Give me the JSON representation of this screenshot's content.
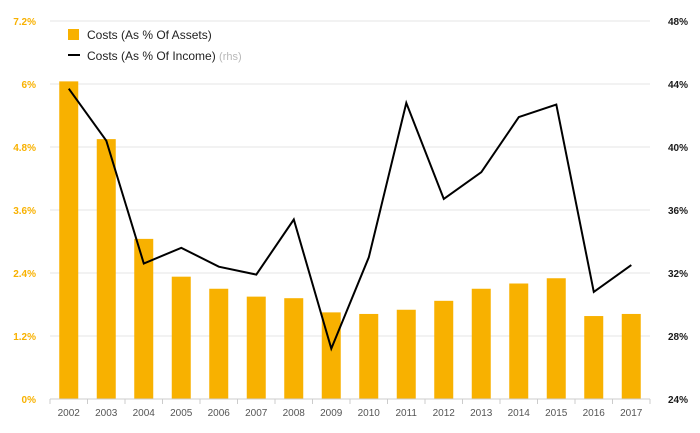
{
  "colors": {
    "bars": "#f8b100",
    "line": "#000000",
    "grid": "#e5e5e5",
    "left_axis_text": "#f8b100",
    "right_axis_text": "#1a1a1a"
  },
  "chart_data": {
    "type": "bar",
    "categories": [
      "2002",
      "2003",
      "2004",
      "2005",
      "2006",
      "2007",
      "2008",
      "2009",
      "2010",
      "2011",
      "2012",
      "2013",
      "2014",
      "2015",
      "2016",
      "2017"
    ],
    "series": [
      {
        "name": "Costs (As % Of Assets)",
        "type": "bar",
        "axis": "left",
        "values": [
          6.05,
          4.95,
          3.05,
          2.33,
          2.1,
          1.95,
          1.92,
          1.65,
          1.62,
          1.7,
          1.87,
          2.1,
          2.2,
          2.3,
          1.58,
          1.62
        ]
      },
      {
        "name": "Costs (As % Of Income)",
        "legend_suffix": "(rhs)",
        "type": "line",
        "axis": "right",
        "values": [
          43.7,
          40.4,
          32.6,
          33.6,
          32.4,
          31.9,
          35.4,
          27.2,
          33.0,
          42.8,
          36.7,
          38.4,
          41.9,
          42.7,
          30.8,
          32.5
        ]
      }
    ],
    "y_left": {
      "ticks": [
        "0%",
        "1.2%",
        "2.4%",
        "3.6%",
        "4.8%",
        "6%",
        "7.2%"
      ],
      "min": 0,
      "max": 7.2
    },
    "y_right": {
      "ticks": [
        "24%",
        "28%",
        "32%",
        "36%",
        "40%",
        "44%",
        "48%"
      ],
      "min": 24,
      "max": 48
    },
    "grid": true,
    "legend_position": "top-left"
  }
}
